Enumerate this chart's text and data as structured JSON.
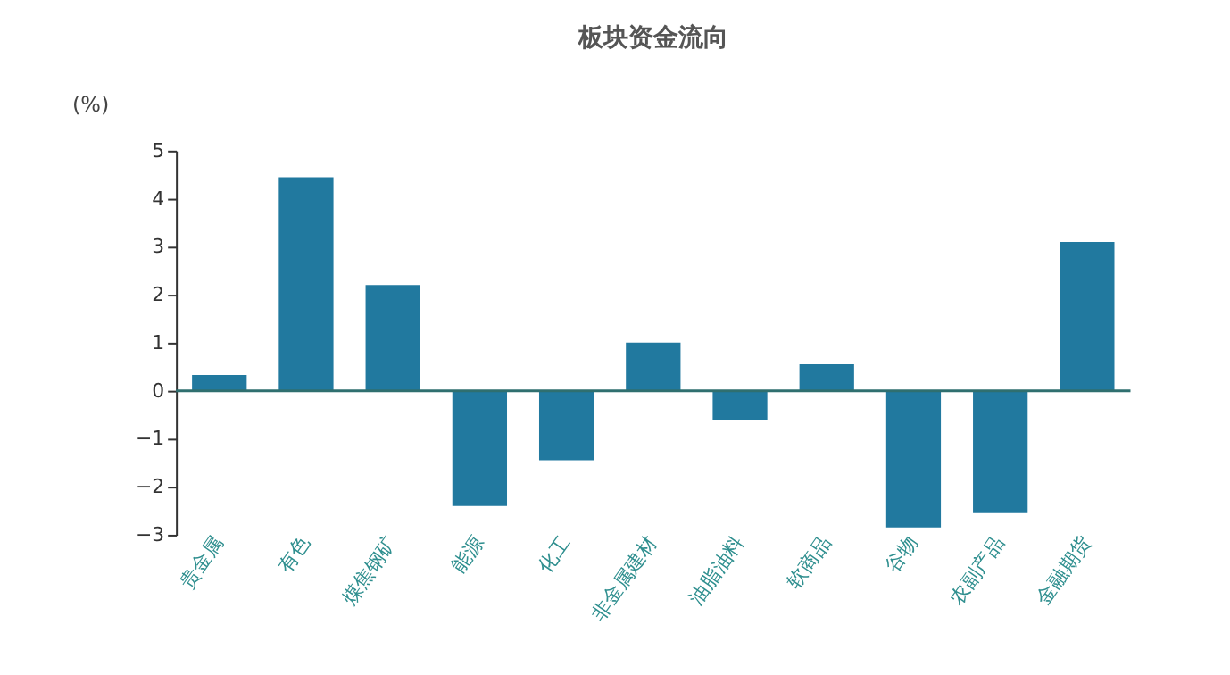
{
  "chart_data": {
    "type": "bar",
    "title": "板块资金流向",
    "ylabel": "(%)",
    "categories": [
      "贵金属",
      "有色",
      "煤焦钢矿",
      "能源",
      "化工",
      "非金属建材",
      "油脂油料",
      "软商品",
      "谷物",
      "农副产品",
      "金融期货"
    ],
    "values": [
      0.33,
      4.45,
      2.2,
      -2.4,
      -1.45,
      1.0,
      -0.6,
      0.55,
      -2.85,
      -2.55,
      3.1
    ],
    "color": "#21799f",
    "ylim": [
      -3,
      5
    ],
    "yticks": [
      -3,
      -2,
      -1,
      0,
      1,
      2,
      3,
      4,
      5
    ],
    "grid": false,
    "ref_lines": [
      {
        "axis": "y",
        "value": 0,
        "color": "#2f6f6f"
      }
    ]
  }
}
